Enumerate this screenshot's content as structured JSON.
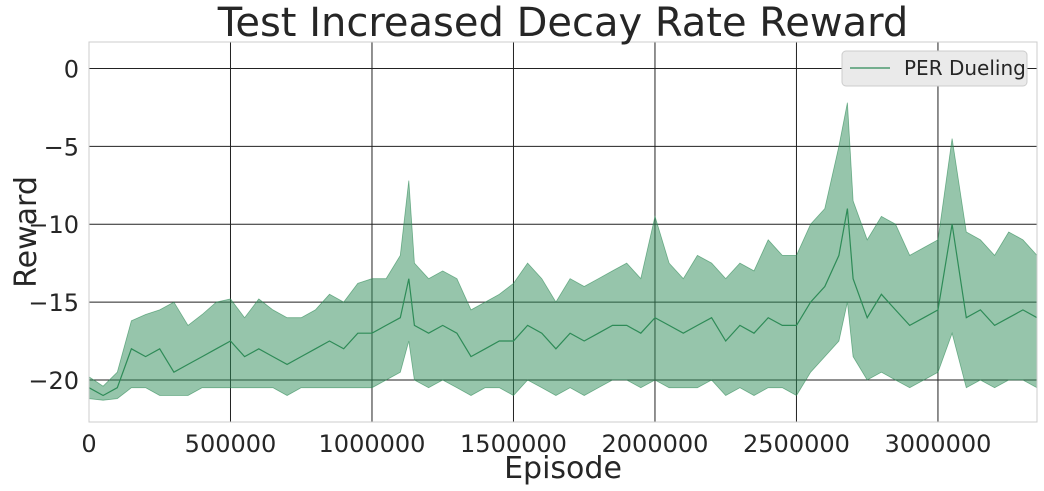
{
  "chart_data": {
    "type": "line",
    "title": "Test Increased Decay Rate Reward",
    "xlabel": "Episode",
    "ylabel": "Reward",
    "xlim": [
      0,
      3350000
    ],
    "ylim": [
      -22.7,
      1.7
    ],
    "x_ticks": [
      0,
      500000,
      1000000,
      1500000,
      2000000,
      2500000,
      3000000
    ],
    "x_tick_labels": [
      "0",
      "500000",
      "1000000",
      "1500000",
      "2000000",
      "2500000",
      "3000000"
    ],
    "y_ticks": [
      0,
      -5,
      -10,
      -15,
      -20
    ],
    "y_tick_labels": [
      "0",
      "−5",
      "−10",
      "−15",
      "−20"
    ],
    "grid": true,
    "legend_position": "top-right",
    "series": [
      {
        "name": "PER Dueling",
        "color": "#2e8b57",
        "band_color": "#2e8b57",
        "x": [
          0,
          50000,
          100000,
          150000,
          200000,
          250000,
          300000,
          350000,
          400000,
          450000,
          500000,
          550000,
          600000,
          650000,
          700000,
          750000,
          800000,
          850000,
          900000,
          950000,
          1000000,
          1050000,
          1100000,
          1130000,
          1150000,
          1200000,
          1250000,
          1300000,
          1350000,
          1400000,
          1450000,
          1500000,
          1550000,
          1600000,
          1650000,
          1700000,
          1750000,
          1800000,
          1850000,
          1900000,
          1950000,
          2000000,
          2050000,
          2100000,
          2150000,
          2200000,
          2250000,
          2300000,
          2350000,
          2400000,
          2450000,
          2500000,
          2550000,
          2600000,
          2650000,
          2680000,
          2700000,
          2750000,
          2800000,
          2850000,
          2900000,
          2950000,
          3000000,
          3050000,
          3100000,
          3150000,
          3200000,
          3250000,
          3300000,
          3350000
        ],
        "values": [
          -20.5,
          -21.0,
          -20.5,
          -18.0,
          -18.5,
          -18.0,
          -19.5,
          -19.0,
          -18.5,
          -18.0,
          -17.5,
          -18.5,
          -18.0,
          -18.5,
          -19.0,
          -18.5,
          -18.0,
          -17.5,
          -18.0,
          -17.0,
          -17.0,
          -16.5,
          -16.0,
          -13.5,
          -16.5,
          -17.0,
          -16.5,
          -17.0,
          -18.5,
          -18.0,
          -17.5,
          -17.5,
          -16.5,
          -17.0,
          -18.0,
          -17.0,
          -17.5,
          -17.0,
          -16.5,
          -16.5,
          -17.0,
          -16.0,
          -16.5,
          -17.0,
          -16.5,
          -16.0,
          -17.5,
          -16.5,
          -17.0,
          -16.0,
          -16.5,
          -16.5,
          -15.0,
          -14.0,
          -12.0,
          -9.0,
          -13.5,
          -16.0,
          -14.5,
          -15.5,
          -16.5,
          -16.0,
          -15.5,
          -10.0,
          -16.0,
          -15.5,
          -16.5,
          -16.0,
          -15.5,
          -16.0
        ],
        "lower": [
          -21.2,
          -21.3,
          -21.2,
          -20.5,
          -20.5,
          -21.0,
          -21.0,
          -21.0,
          -20.5,
          -20.5,
          -20.5,
          -20.5,
          -20.5,
          -20.5,
          -21.0,
          -20.5,
          -20.5,
          -20.5,
          -20.5,
          -20.5,
          -20.5,
          -20.0,
          -19.5,
          -17.5,
          -20.0,
          -20.5,
          -20.0,
          -20.5,
          -21.0,
          -20.5,
          -20.5,
          -21.0,
          -20.0,
          -20.5,
          -21.0,
          -20.5,
          -21.0,
          -20.5,
          -20.0,
          -20.0,
          -20.5,
          -20.0,
          -20.5,
          -20.5,
          -20.5,
          -20.0,
          -21.0,
          -20.5,
          -21.0,
          -20.5,
          -20.5,
          -21.0,
          -19.5,
          -18.5,
          -17.5,
          -15.0,
          -18.5,
          -20.0,
          -19.5,
          -20.0,
          -20.5,
          -20.0,
          -19.5,
          -17.0,
          -20.5,
          -20.0,
          -20.5,
          -20.0,
          -20.0,
          -20.5
        ],
        "upper": [
          -19.8,
          -20.4,
          -19.5,
          -16.2,
          -15.8,
          -15.5,
          -15.0,
          -16.5,
          -15.8,
          -15.0,
          -14.8,
          -16.0,
          -14.8,
          -15.5,
          -16.0,
          -16.0,
          -15.5,
          -14.5,
          -15.0,
          -13.8,
          -13.5,
          -13.5,
          -12.0,
          -7.2,
          -12.5,
          -13.5,
          -13.0,
          -13.5,
          -15.5,
          -15.0,
          -14.5,
          -13.8,
          -12.5,
          -13.5,
          -15.0,
          -13.5,
          -14.0,
          -13.5,
          -13.0,
          -12.5,
          -13.5,
          -9.5,
          -12.5,
          -13.5,
          -12.0,
          -12.5,
          -13.5,
          -12.5,
          -13.0,
          -11.0,
          -12.0,
          -12.0,
          -10.0,
          -9.0,
          -5.0,
          -2.2,
          -8.5,
          -11.0,
          -9.5,
          -10.0,
          -12.0,
          -11.5,
          -11.0,
          -4.5,
          -10.5,
          -11.0,
          -12.0,
          -10.5,
          -11.0,
          -12.0
        ]
      }
    ]
  }
}
